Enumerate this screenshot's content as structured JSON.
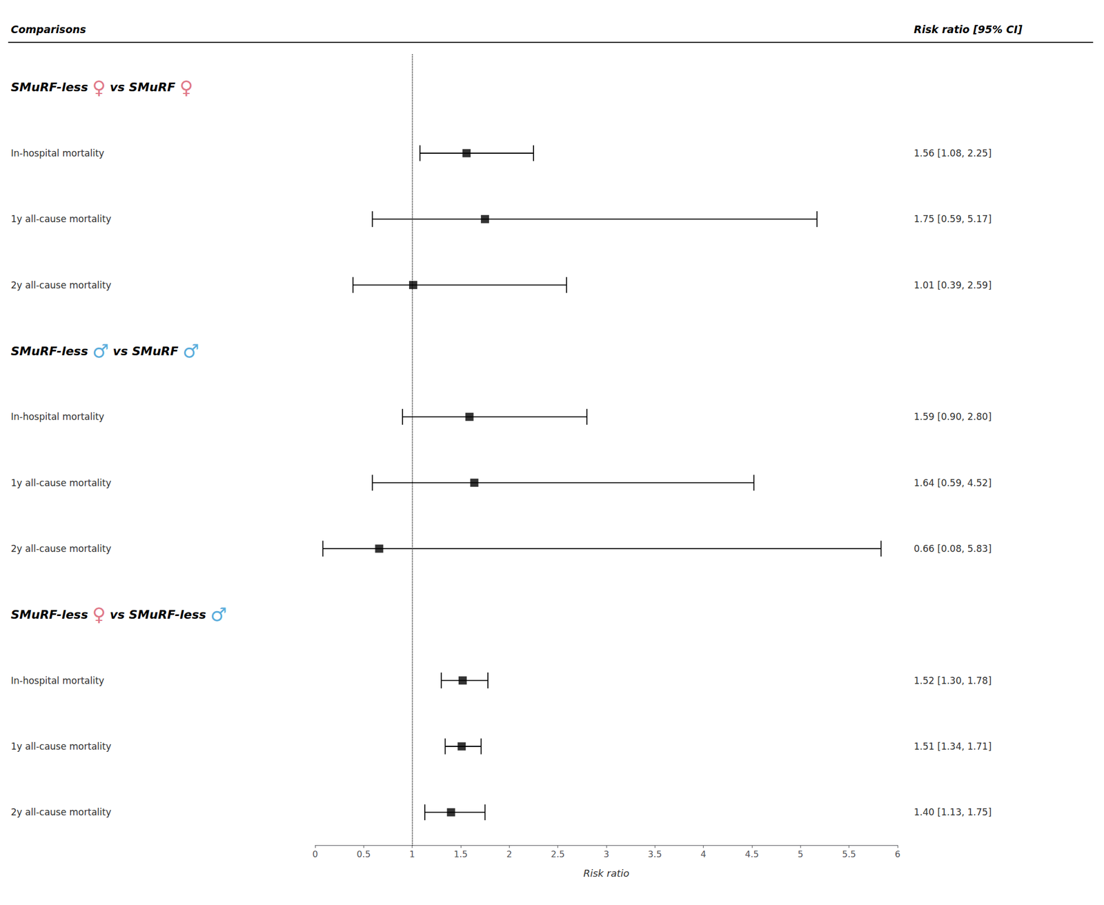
{
  "chart_data": {
    "type": "forest",
    "xlabel": "Risk ratio",
    "xlim": [
      0,
      6
    ],
    "xticks": [
      0,
      0.5,
      1,
      1.5,
      2,
      2.5,
      3,
      3.5,
      4,
      4.5,
      5,
      5.5,
      6
    ],
    "grid": false,
    "reference_x": 1,
    "marker": "square",
    "color": "#000000",
    "column_headers": [
      "Comparisons",
      "Risk ratio [95% CI]"
    ],
    "symbol_colors": {
      "♀": "#e07888",
      "♂": "#5aaddc"
    },
    "groups": [
      {
        "name": "SMuRF-less ♀ vs SMuRF ♀",
        "rows": [
          {
            "label": "In-hospital mortality",
            "value": 1.56,
            "lo": 1.08,
            "hi": 2.25,
            "text": "1.56 [1.08, 2.25]"
          },
          {
            "label": "1y all-cause mortality",
            "value": 1.75,
            "lo": 0.59,
            "hi": 5.17,
            "text": "1.75 [0.59, 5.17]"
          },
          {
            "label": "2y all-cause mortality",
            "value": 1.01,
            "lo": 0.39,
            "hi": 2.59,
            "text": "1.01 [0.39, 2.59]"
          }
        ]
      },
      {
        "name": "SMuRF-less ♂ vs SMuRF ♂",
        "rows": [
          {
            "label": "In-hospital mortality",
            "value": 1.59,
            "lo": 0.9,
            "hi": 2.8,
            "text": "1.59 [0.90, 2.80]"
          },
          {
            "label": "1y all-cause mortality",
            "value": 1.64,
            "lo": 0.59,
            "hi": 4.52,
            "text": "1.64 [0.59, 4.52]"
          },
          {
            "label": "2y all-cause mortality",
            "value": 0.66,
            "lo": 0.08,
            "hi": 5.83,
            "text": "0.66 [0.08, 5.83]"
          }
        ]
      },
      {
        "name": "SMuRF-less ♀ vs SMuRF-less ♂",
        "rows": [
          {
            "label": "In-hospital mortality",
            "value": 1.52,
            "lo": 1.3,
            "hi": 1.78,
            "text": "1.52 [1.30, 1.78]"
          },
          {
            "label": "1y all-cause mortality",
            "value": 1.51,
            "lo": 1.34,
            "hi": 1.71,
            "text": "1.51 [1.34, 1.71]"
          },
          {
            "label": "2y all-cause mortality",
            "value": 1.4,
            "lo": 1.13,
            "hi": 1.75,
            "text": "1.40 [1.13, 1.75]"
          }
        ]
      }
    ]
  }
}
